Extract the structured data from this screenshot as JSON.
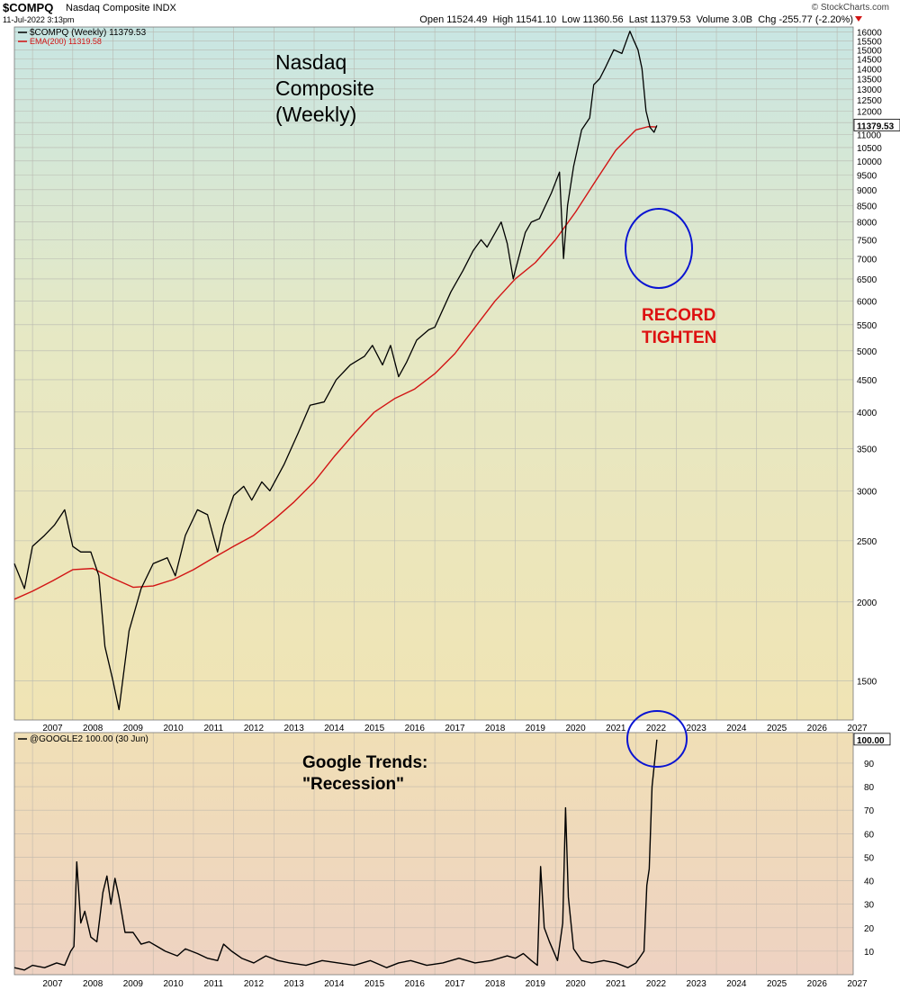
{
  "header": {
    "symbol": "$COMPQ",
    "name": "Nasdaq Composite INDX",
    "timestamp": "11-Jul-2022 3:13pm",
    "source": "© StockCharts.com",
    "ohlc": "Open 11524.49  High 11541.10  Low 11360.56  Last 11379.53  Volume 3.0B  Chg -255.77 (-2.20%)"
  },
  "colors": {
    "price_line": "#000000",
    "ema_line": "#d21414",
    "annotation_red": "#dd1111",
    "circle": "#0a14d2"
  },
  "chart_data": [
    {
      "type": "line",
      "title": "Nasdaq Composite (Weekly)",
      "legend": [
        "$COMPQ (Weekly) 11379.53",
        "EMA(200) 11319.58"
      ],
      "y_scale": "log",
      "ylim": [
        1300,
        16300
      ],
      "yticks": [
        1500,
        2000,
        2500,
        3000,
        3500,
        4000,
        4500,
        5000,
        5500,
        6000,
        6500,
        7000,
        7500,
        8000,
        8500,
        9000,
        9500,
        10000,
        10500,
        11000,
        11500,
        12000,
        12500,
        13000,
        13500,
        14000,
        14500,
        15000,
        15500,
        16000
      ],
      "xticks": [
        "2007",
        "2008",
        "2009",
        "2010",
        "2011",
        "2012",
        "2013",
        "2014",
        "2015",
        "2016",
        "2017",
        "2018",
        "2019",
        "2020",
        "2021",
        "2022",
        "2023",
        "2024",
        "2025",
        "2026",
        "2027"
      ],
      "last_value_label": "11379.53",
      "annotation": [
        "RECORD",
        "TIGHTEN"
      ],
      "series": [
        {
          "name": "$COMPQ (Weekly)",
          "x": [
            2006.55,
            2006.8,
            2007.0,
            2007.3,
            2007.55,
            2007.8,
            2008.0,
            2008.2,
            2008.45,
            2008.65,
            2008.8,
            2009.0,
            2009.15,
            2009.4,
            2009.7,
            2010.0,
            2010.35,
            2010.55,
            2010.8,
            2011.1,
            2011.35,
            2011.6,
            2011.75,
            2012.0,
            2012.25,
            2012.45,
            2012.7,
            2012.9,
            2013.25,
            2013.6,
            2013.9,
            2014.25,
            2014.55,
            2014.9,
            2015.25,
            2015.45,
            2015.7,
            2015.9,
            2016.1,
            2016.3,
            2016.55,
            2016.85,
            2017.0,
            2017.4,
            2017.7,
            2017.95,
            2018.15,
            2018.3,
            2018.65,
            2018.8,
            2018.95,
            2019.0,
            2019.25,
            2019.4,
            2019.6,
            2019.9,
            2020.1,
            2020.2,
            2020.3,
            2020.45,
            2020.65,
            2020.85,
            2020.95,
            2021.1,
            2021.25,
            2021.45,
            2021.65,
            2021.85,
            2021.95,
            2022.05,
            2022.15,
            2022.25,
            2022.35,
            2022.45,
            2022.52
          ],
          "values": [
            2300,
            2100,
            2450,
            2550,
            2650,
            2800,
            2450,
            2400,
            2400,
            2200,
            1700,
            1500,
            1350,
            1800,
            2100,
            2300,
            2350,
            2200,
            2550,
            2800,
            2750,
            2400,
            2650,
            2950,
            3050,
            2900,
            3100,
            3000,
            3300,
            3700,
            4100,
            4150,
            4500,
            4750,
            4900,
            5100,
            4750,
            5100,
            4550,
            4800,
            5200,
            5400,
            5450,
            6200,
            6700,
            7200,
            7500,
            7300,
            8000,
            7400,
            6500,
            6700,
            7700,
            8000,
            8100,
            8900,
            9600,
            7000,
            8500,
            9800,
            11200,
            11700,
            13200,
            13500,
            14100,
            15000,
            14800,
            16050,
            15500,
            15000,
            14000,
            12000,
            11300,
            11100,
            11380
          ]
        },
        {
          "name": "EMA(200)",
          "x": [
            2006.55,
            2007.0,
            2007.5,
            2008.0,
            2008.5,
            2009.0,
            2009.5,
            2010.0,
            2010.5,
            2011.0,
            2011.5,
            2012.0,
            2012.5,
            2013.0,
            2013.5,
            2014.0,
            2014.5,
            2015.0,
            2015.5,
            2016.0,
            2016.5,
            2017.0,
            2017.5,
            2018.0,
            2018.5,
            2019.0,
            2019.5,
            2020.0,
            2020.5,
            2021.0,
            2021.5,
            2022.0,
            2022.3,
            2022.52
          ],
          "values": [
            2020,
            2080,
            2160,
            2250,
            2260,
            2180,
            2110,
            2120,
            2170,
            2250,
            2350,
            2450,
            2550,
            2700,
            2880,
            3100,
            3400,
            3700,
            4000,
            4200,
            4350,
            4600,
            4950,
            5450,
            6000,
            6500,
            6900,
            7500,
            8300,
            9300,
            10400,
            11200,
            11330,
            11320
          ]
        }
      ]
    },
    {
      "type": "line",
      "title": "Google Trends: \"Recession\"",
      "legend": [
        "@GOOGLE2 100.00 (30 Jun)"
      ],
      "ylim": [
        0,
        103
      ],
      "yticks": [
        10,
        20,
        30,
        40,
        50,
        60,
        70,
        80,
        90
      ],
      "xticks": [
        "2007",
        "2008",
        "2009",
        "2010",
        "2011",
        "2012",
        "2013",
        "2014",
        "2015",
        "2016",
        "2017",
        "2018",
        "2019",
        "2020",
        "2021",
        "2022",
        "2023",
        "2024",
        "2025",
        "2026",
        "2027"
      ],
      "last_value_label": "100.00",
      "series": [
        {
          "name": "@GOOGLE2",
          "x": [
            2006.55,
            2006.8,
            2007.0,
            2007.3,
            2007.6,
            2007.8,
            2007.95,
            2008.03,
            2008.1,
            2008.2,
            2008.3,
            2008.45,
            2008.6,
            2008.75,
            2008.85,
            2008.95,
            2009.05,
            2009.15,
            2009.3,
            2009.5,
            2009.7,
            2009.9,
            2010.1,
            2010.3,
            2010.6,
            2010.8,
            2011.1,
            2011.35,
            2011.6,
            2011.75,
            2011.95,
            2012.2,
            2012.5,
            2012.8,
            2013.1,
            2013.4,
            2013.8,
            2014.2,
            2014.6,
            2015.0,
            2015.4,
            2015.8,
            2016.1,
            2016.4,
            2016.8,
            2017.2,
            2017.6,
            2018.0,
            2018.4,
            2018.8,
            2019.0,
            2019.2,
            2019.4,
            2019.55,
            2019.63,
            2019.72,
            2019.85,
            2020.05,
            2020.18,
            2020.25,
            2020.32,
            2020.45,
            2020.65,
            2020.9,
            2021.2,
            2021.5,
            2021.8,
            2022.0,
            2022.12,
            2022.2,
            2022.27,
            2022.33,
            2022.4,
            2022.52
          ],
          "values": [
            3,
            2,
            4,
            3,
            5,
            4,
            10,
            12,
            48,
            22,
            27,
            16,
            14,
            35,
            42,
            30,
            41,
            33,
            18,
            18,
            13,
            14,
            12,
            10,
            8,
            11,
            9,
            7,
            6,
            13,
            10,
            7,
            5,
            8,
            6,
            5,
            4,
            6,
            5,
            4,
            6,
            3,
            5,
            6,
            4,
            5,
            7,
            5,
            6,
            8,
            7,
            9,
            6,
            4,
            46,
            20,
            14,
            6,
            22,
            71,
            33,
            11,
            6,
            5,
            6,
            5,
            3,
            5,
            8,
            10,
            38,
            45,
            80,
            100
          ]
        }
      ]
    }
  ]
}
